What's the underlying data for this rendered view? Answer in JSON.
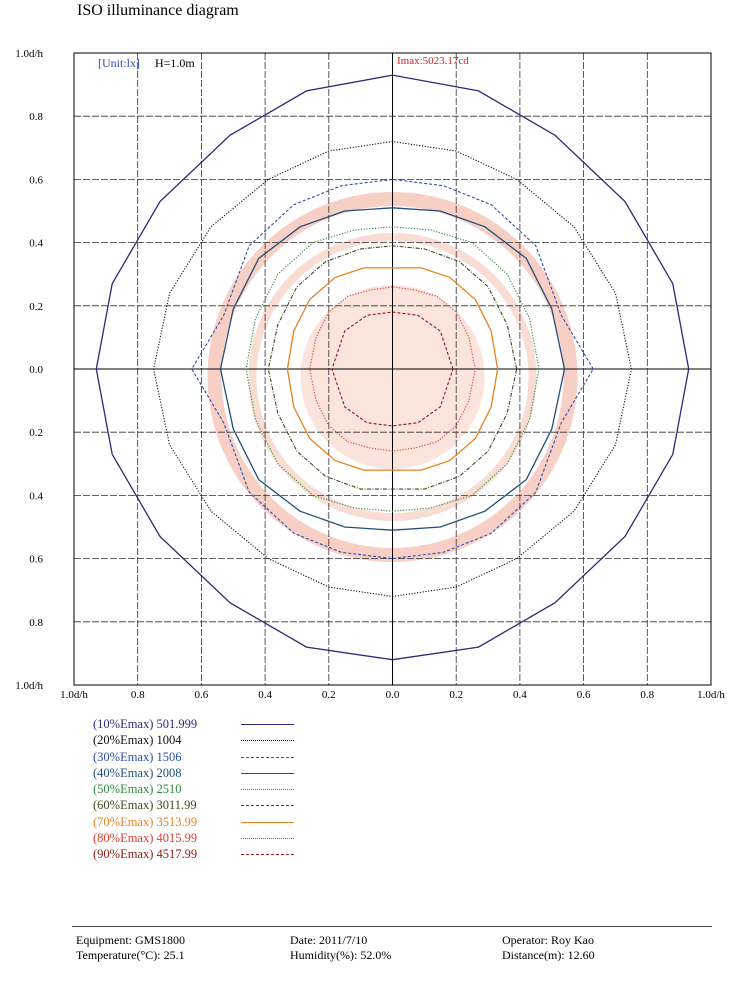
{
  "title": "ISO illuminance diagram",
  "chart_data": {
    "type": "contour",
    "unit_label": "[Unit:lx]",
    "height_label": "H=1.0m",
    "imax_label": "Imax:5023.17cd",
    "x_ticks": [
      "1.0d/h",
      "0.8",
      "0.6",
      "0.4",
      "0.2",
      "0.0",
      "0.2",
      "0.4",
      "0.6",
      "0.8",
      "1.0d/h"
    ],
    "y_ticks": [
      "1.0d/h",
      "0.8",
      "0.6",
      "0.4",
      "0.2",
      "0.0",
      "0.2",
      "0.4",
      "0.6",
      "0.8",
      "1.0d/h"
    ],
    "xlim": [
      -1.0,
      1.0
    ],
    "ylim": [
      -1.0,
      1.0
    ],
    "grid": true,
    "series": [
      {
        "name": "(10%Emax)",
        "value": "501.999",
        "color": "#2b2a7a",
        "dash": "solid",
        "points": [
          [
            0.93,
            0
          ],
          [
            0.88,
            0.27
          ],
          [
            0.73,
            0.53
          ],
          [
            0.51,
            0.74
          ],
          [
            0.27,
            0.88
          ],
          [
            0,
            0.93
          ],
          [
            -0.27,
            0.88
          ],
          [
            -0.51,
            0.74
          ],
          [
            -0.73,
            0.53
          ],
          [
            -0.88,
            0.27
          ],
          [
            -0.93,
            0
          ],
          [
            -0.88,
            -0.27
          ],
          [
            -0.73,
            -0.53
          ],
          [
            -0.51,
            -0.74
          ],
          [
            -0.27,
            -0.88
          ],
          [
            0,
            -0.92
          ],
          [
            0.27,
            -0.88
          ],
          [
            0.51,
            -0.74
          ],
          [
            0.73,
            -0.53
          ],
          [
            0.88,
            -0.27
          ]
        ]
      },
      {
        "name": "(20%Emax)",
        "value": "1004",
        "color": "#111111",
        "dash": "dotted",
        "points": [
          [
            0.75,
            0
          ],
          [
            0.7,
            0.24
          ],
          [
            0.57,
            0.45
          ],
          [
            0.39,
            0.6
          ],
          [
            0.2,
            0.69
          ],
          [
            0,
            0.72
          ],
          [
            -0.2,
            0.69
          ],
          [
            -0.39,
            0.6
          ],
          [
            -0.57,
            0.45
          ],
          [
            -0.7,
            0.24
          ],
          [
            -0.75,
            0
          ],
          [
            -0.7,
            -0.24
          ],
          [
            -0.57,
            -0.45
          ],
          [
            -0.39,
            -0.6
          ],
          [
            -0.2,
            -0.69
          ],
          [
            0,
            -0.72
          ],
          [
            0.2,
            -0.69
          ],
          [
            0.39,
            -0.6
          ],
          [
            0.57,
            -0.45
          ],
          [
            0.7,
            -0.24
          ]
        ]
      },
      {
        "name": "(30%Emax)",
        "value": "1506",
        "color": "#2c4fb0",
        "dash": "dashed",
        "points": [
          [
            0.63,
            0
          ],
          [
            0.53,
            0.17
          ],
          [
            0.45,
            0.39
          ],
          [
            0.31,
            0.52
          ],
          [
            0.16,
            0.58
          ],
          [
            0,
            0.6
          ],
          [
            -0.16,
            0.58
          ],
          [
            -0.31,
            0.52
          ],
          [
            -0.45,
            0.39
          ],
          [
            -0.53,
            0.17
          ],
          [
            -0.63,
            0
          ],
          [
            -0.53,
            -0.17
          ],
          [
            -0.45,
            -0.39
          ],
          [
            -0.31,
            -0.52
          ],
          [
            -0.16,
            -0.58
          ],
          [
            0,
            -0.6
          ],
          [
            0.16,
            -0.58
          ],
          [
            0.31,
            -0.52
          ],
          [
            0.45,
            -0.39
          ],
          [
            0.53,
            -0.17
          ]
        ]
      },
      {
        "name": "(40%Emax)",
        "value": "2008",
        "color": "#1f4f7a",
        "dash": "solid",
        "points": [
          [
            0.54,
            0
          ],
          [
            0.5,
            0.19
          ],
          [
            0.42,
            0.35
          ],
          [
            0.29,
            0.45
          ],
          [
            0.15,
            0.5
          ],
          [
            0,
            0.51
          ],
          [
            -0.15,
            0.5
          ],
          [
            -0.29,
            0.45
          ],
          [
            -0.42,
            0.35
          ],
          [
            -0.5,
            0.19
          ],
          [
            -0.54,
            0
          ],
          [
            -0.5,
            -0.19
          ],
          [
            -0.42,
            -0.35
          ],
          [
            -0.29,
            -0.45
          ],
          [
            -0.15,
            -0.5
          ],
          [
            0,
            -0.51
          ],
          [
            0.15,
            -0.5
          ],
          [
            0.29,
            -0.45
          ],
          [
            0.42,
            -0.35
          ],
          [
            0.5,
            -0.19
          ]
        ]
      },
      {
        "name": "(50%Emax)",
        "value": "2510",
        "color": "#2e8b3a",
        "dash": "dotted",
        "points": [
          [
            0.46,
            0
          ],
          [
            0.43,
            0.16
          ],
          [
            0.36,
            0.3
          ],
          [
            0.25,
            0.4
          ],
          [
            0.12,
            0.44
          ],
          [
            0,
            0.45
          ],
          [
            -0.12,
            0.44
          ],
          [
            -0.25,
            0.4
          ],
          [
            -0.36,
            0.3
          ],
          [
            -0.43,
            0.16
          ],
          [
            -0.46,
            0
          ],
          [
            -0.43,
            -0.16
          ],
          [
            -0.36,
            -0.3
          ],
          [
            -0.25,
            -0.4
          ],
          [
            -0.12,
            -0.44
          ],
          [
            0,
            -0.45
          ],
          [
            0.12,
            -0.44
          ],
          [
            0.25,
            -0.4
          ],
          [
            0.36,
            -0.3
          ],
          [
            0.43,
            -0.16
          ]
        ]
      },
      {
        "name": "(60%Emax)",
        "value": "3011.99",
        "color": "#3d4a1e",
        "dash": "dashdot",
        "points": [
          [
            0.39,
            0
          ],
          [
            0.36,
            0.14
          ],
          [
            0.3,
            0.26
          ],
          [
            0.21,
            0.34
          ],
          [
            0.1,
            0.38
          ],
          [
            0,
            0.39
          ],
          [
            -0.1,
            0.38
          ],
          [
            -0.21,
            0.34
          ],
          [
            -0.3,
            0.26
          ],
          [
            -0.36,
            0.14
          ],
          [
            -0.39,
            0
          ],
          [
            -0.36,
            -0.14
          ],
          [
            -0.3,
            -0.26
          ],
          [
            -0.21,
            -0.34
          ],
          [
            -0.1,
            -0.38
          ],
          [
            0,
            -0.38
          ],
          [
            0.1,
            -0.38
          ],
          [
            0.21,
            -0.34
          ],
          [
            0.3,
            -0.26
          ],
          [
            0.36,
            -0.14
          ]
        ]
      },
      {
        "name": "(70%Emax)",
        "value": "3513.99",
        "color": "#e8821e",
        "dash": "solid",
        "points": [
          [
            0.33,
            0
          ],
          [
            0.31,
            0.12
          ],
          [
            0.26,
            0.22
          ],
          [
            0.18,
            0.29
          ],
          [
            0.09,
            0.32
          ],
          [
            0,
            0.32
          ],
          [
            -0.09,
            0.32
          ],
          [
            -0.18,
            0.29
          ],
          [
            -0.26,
            0.22
          ],
          [
            -0.31,
            0.12
          ],
          [
            -0.33,
            0
          ],
          [
            -0.31,
            -0.12
          ],
          [
            -0.26,
            -0.22
          ],
          [
            -0.18,
            -0.29
          ],
          [
            -0.09,
            -0.32
          ],
          [
            0,
            -0.32
          ],
          [
            0.09,
            -0.32
          ],
          [
            0.18,
            -0.29
          ],
          [
            0.26,
            -0.22
          ],
          [
            0.31,
            -0.12
          ]
        ]
      },
      {
        "name": "(80%Emax)",
        "value": "4015.99",
        "color": "#e03a2a",
        "dash": "dotted",
        "points": [
          [
            0.26,
            0
          ],
          [
            0.24,
            0.1
          ],
          [
            0.2,
            0.18
          ],
          [
            0.14,
            0.23
          ],
          [
            0.07,
            0.25
          ],
          [
            0,
            0.26
          ],
          [
            -0.07,
            0.25
          ],
          [
            -0.14,
            0.23
          ],
          [
            -0.2,
            0.18
          ],
          [
            -0.24,
            0.1
          ],
          [
            -0.26,
            0
          ],
          [
            -0.24,
            -0.1
          ],
          [
            -0.2,
            -0.18
          ],
          [
            -0.14,
            -0.23
          ],
          [
            -0.07,
            -0.25
          ],
          [
            0,
            -0.26
          ],
          [
            0.07,
            -0.25
          ],
          [
            0.14,
            -0.23
          ],
          [
            0.2,
            -0.18
          ],
          [
            0.24,
            -0.1
          ]
        ]
      },
      {
        "name": "(90%Emax)",
        "value": "4517.99",
        "color": "#8b1a10",
        "dash": "dashed",
        "points": [
          [
            0.19,
            0
          ],
          [
            0.15,
            0.12
          ],
          [
            0.08,
            0.17
          ],
          [
            0,
            0.18
          ],
          [
            -0.08,
            0.17
          ],
          [
            -0.15,
            0.12
          ],
          [
            -0.19,
            0
          ],
          [
            -0.15,
            -0.12
          ],
          [
            -0.08,
            -0.17
          ],
          [
            0,
            -0.18
          ],
          [
            0.08,
            -0.17
          ],
          [
            0.15,
            -0.12
          ]
        ]
      }
    ]
  },
  "footer": {
    "equipment": "Equipment: GMS1800",
    "temperature": "Temperature(°C): 25.1",
    "date": "Date: 2011/7/10",
    "humidity": "Humidity(%): 52.0%",
    "operator": "Operator: Roy Kao",
    "distance": "Distance(m): 12.60"
  }
}
